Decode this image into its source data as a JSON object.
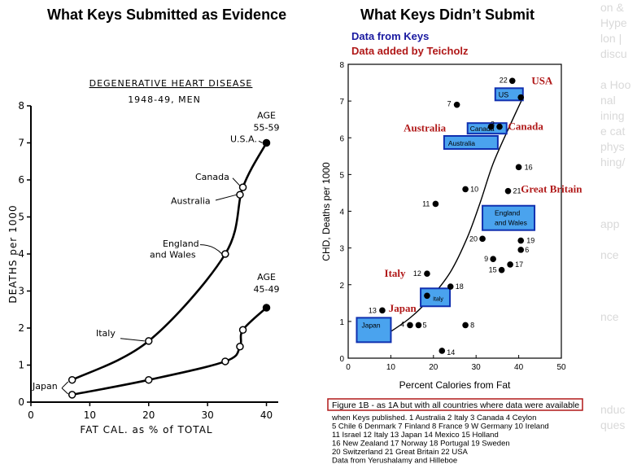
{
  "left_panel": {
    "title": "What Keys Submitted as Evidence"
  },
  "right_panel": {
    "title": "What Keys Didn’t Submit",
    "legend_blue": "Data from Keys",
    "legend_red": "Data added by Teicholz"
  },
  "faded_strip": [
    "on &",
    "Hype",
    "lon |",
    "discu",
    "",
    "a Hoo",
    "nal",
    "ining",
    "e cat",
    "phys",
    "hing/",
    "",
    "",
    "",
    "app",
    "",
    "nce",
    "",
    "",
    "",
    "nce",
    "",
    "",
    "",
    "",
    "",
    "nduc",
    "ques"
  ],
  "colors": {
    "keys_blue": "#1a1aa0",
    "teicholz_red": "#b01818",
    "box_fill": "#4aa3ee",
    "box_border": "#1030b0",
    "caption_border": "#b01818"
  },
  "chart_data": [
    {
      "type": "line",
      "panel": "left",
      "title": "DEGENERATIVE HEART DISEASE",
      "subtitle": "1948-49, MEN",
      "xlabel": "FAT CAL. as % of TOTAL",
      "ylabel": "DEATHS per 1000",
      "xlim": [
        0,
        42
      ],
      "ylim": [
        0,
        8
      ],
      "xticks": [
        0,
        10,
        20,
        30,
        40
      ],
      "yticks": [
        0,
        1,
        2,
        3,
        4,
        5,
        6,
        7,
        8
      ],
      "series": [
        {
          "name": "AGE 55-59",
          "x": [
            7,
            20,
            33,
            36,
            40
          ],
          "y": [
            0.6,
            1.65,
            4.0,
            5.8,
            7.0
          ]
        },
        {
          "name": "AGE 45-49",
          "x": [
            7,
            20,
            33,
            35.5,
            36,
            40
          ],
          "y": [
            0.2,
            0.6,
            1.1,
            1.5,
            1.95,
            2.55
          ]
        }
      ],
      "points": [
        {
          "label": "Japan",
          "x": 7,
          "y": 0.6,
          "series": "AGE 55-59"
        },
        {
          "label": "Italy",
          "x": 20,
          "y": 1.65,
          "series": "AGE 55-59"
        },
        {
          "label": "England and Wales",
          "x": 33,
          "y": 4.0,
          "series": "AGE 55-59"
        },
        {
          "label": "Australia",
          "x": 35.5,
          "y": 5.6,
          "series": "AGE 55-59"
        },
        {
          "label": "Canada",
          "x": 36,
          "y": 5.8,
          "series": "AGE 55-59"
        },
        {
          "label": "U.S.A.",
          "x": 40,
          "y": 7.0,
          "series": "AGE 55-59"
        },
        {
          "label": "",
          "x": 7,
          "y": 0.2,
          "series": "AGE 45-49"
        },
        {
          "label": "",
          "x": 20,
          "y": 0.6,
          "series": "AGE 45-49"
        },
        {
          "label": "",
          "x": 33,
          "y": 1.1,
          "series": "AGE 45-49"
        },
        {
          "label": "",
          "x": 35.5,
          "y": 1.5,
          "series": "AGE 45-49"
        },
        {
          "label": "",
          "x": 36,
          "y": 1.95,
          "series": "AGE 45-49"
        },
        {
          "label": "",
          "x": 40,
          "y": 2.55,
          "series": "AGE 45-49"
        }
      ],
      "annotations": [
        {
          "text": "AGE",
          "x": 40,
          "y": 7.0
        },
        {
          "text": "55-59",
          "x": 40,
          "y": 7.0
        },
        {
          "text": "AGE",
          "x": 40,
          "y": 2.55
        },
        {
          "text": "45-49",
          "x": 40,
          "y": 2.55
        }
      ]
    },
    {
      "type": "scatter",
      "panel": "right",
      "xlabel": "Percent Calories from Fat",
      "ylabel": "CHD, Deaths per 1000",
      "xlim": [
        0,
        50
      ],
      "ylim": [
        0,
        8
      ],
      "xticks": [
        0,
        10,
        20,
        30,
        40,
        50
      ],
      "yticks": [
        0,
        1,
        2,
        3,
        4,
        5,
        6,
        7,
        8
      ],
      "points": [
        {
          "id": "1",
          "x": 33.5,
          "y": 6.3
        },
        {
          "id": "2",
          "x": 18.5,
          "y": 1.7
        },
        {
          "id": "3",
          "x": 35.5,
          "y": 6.3
        },
        {
          "id": "4",
          "x": 14.5,
          "y": 0.9
        },
        {
          "id": "5",
          "x": 16.5,
          "y": 0.9
        },
        {
          "id": "6",
          "x": 40.5,
          "y": 2.95
        },
        {
          "id": "7",
          "x": 25.5,
          "y": 6.9
        },
        {
          "id": "8",
          "x": 27.5,
          "y": 0.9
        },
        {
          "id": "9",
          "x": 34,
          "y": 2.7
        },
        {
          "id": "10",
          "x": 27.5,
          "y": 4.6
        },
        {
          "id": "11",
          "x": 20.5,
          "y": 4.2
        },
        {
          "id": "12",
          "x": 18.5,
          "y": 2.3
        },
        {
          "id": "13",
          "x": 8,
          "y": 1.3
        },
        {
          "id": "14",
          "x": 22,
          "y": 0.2
        },
        {
          "id": "15",
          "x": 36,
          "y": 2.4
        },
        {
          "id": "16",
          "x": 40,
          "y": 5.2
        },
        {
          "id": "17",
          "x": 38,
          "y": 2.55
        },
        {
          "id": "18",
          "x": 24,
          "y": 1.95
        },
        {
          "id": "19",
          "x": 40.5,
          "y": 3.2
        },
        {
          "id": "20",
          "x": 31.5,
          "y": 3.25
        },
        {
          "id": "21",
          "x": 37.5,
          "y": 4.55
        },
        {
          "id": "22",
          "x": 38.5,
          "y": 7.55
        },
        {
          "id": "USA",
          "x": 40.5,
          "y": 7.1
        }
      ],
      "fit_curve": {
        "x": [
          7,
          14,
          19,
          24,
          28,
          31,
          34,
          38,
          41
        ],
        "y": [
          0.5,
          1.05,
          1.6,
          2.35,
          3.3,
          4.25,
          5.3,
          6.35,
          7.1
        ]
      },
      "keys_boxes": [
        "US",
        "Canada",
        "Australia",
        "England and Wales",
        "Italy",
        "Japan"
      ],
      "teicholz_labels": [
        "USA",
        "Canada",
        "Australia",
        "Great Britain",
        "Italy",
        "Japan"
      ],
      "caption_header": "Figure 1B - as 1A but with all countries where data were available",
      "caption_lines": [
        "when Keys published.  1 Australia 2 Italy 3 Canada 4 Ceylon",
        "5 Chile 6 Denmark 7 Finland 8 France 9 W Germany 10 Ireland",
        "11 Israel 12 Italy 13 Japan 14 Mexico 15 Holland",
        "16 New Zealand 17 Norway 18 Portugal 19 Sweden",
        "20 Switzerland 21 Great Britain 22 USA",
        "Data from Yerushalamy and Hilleboe"
      ]
    }
  ]
}
